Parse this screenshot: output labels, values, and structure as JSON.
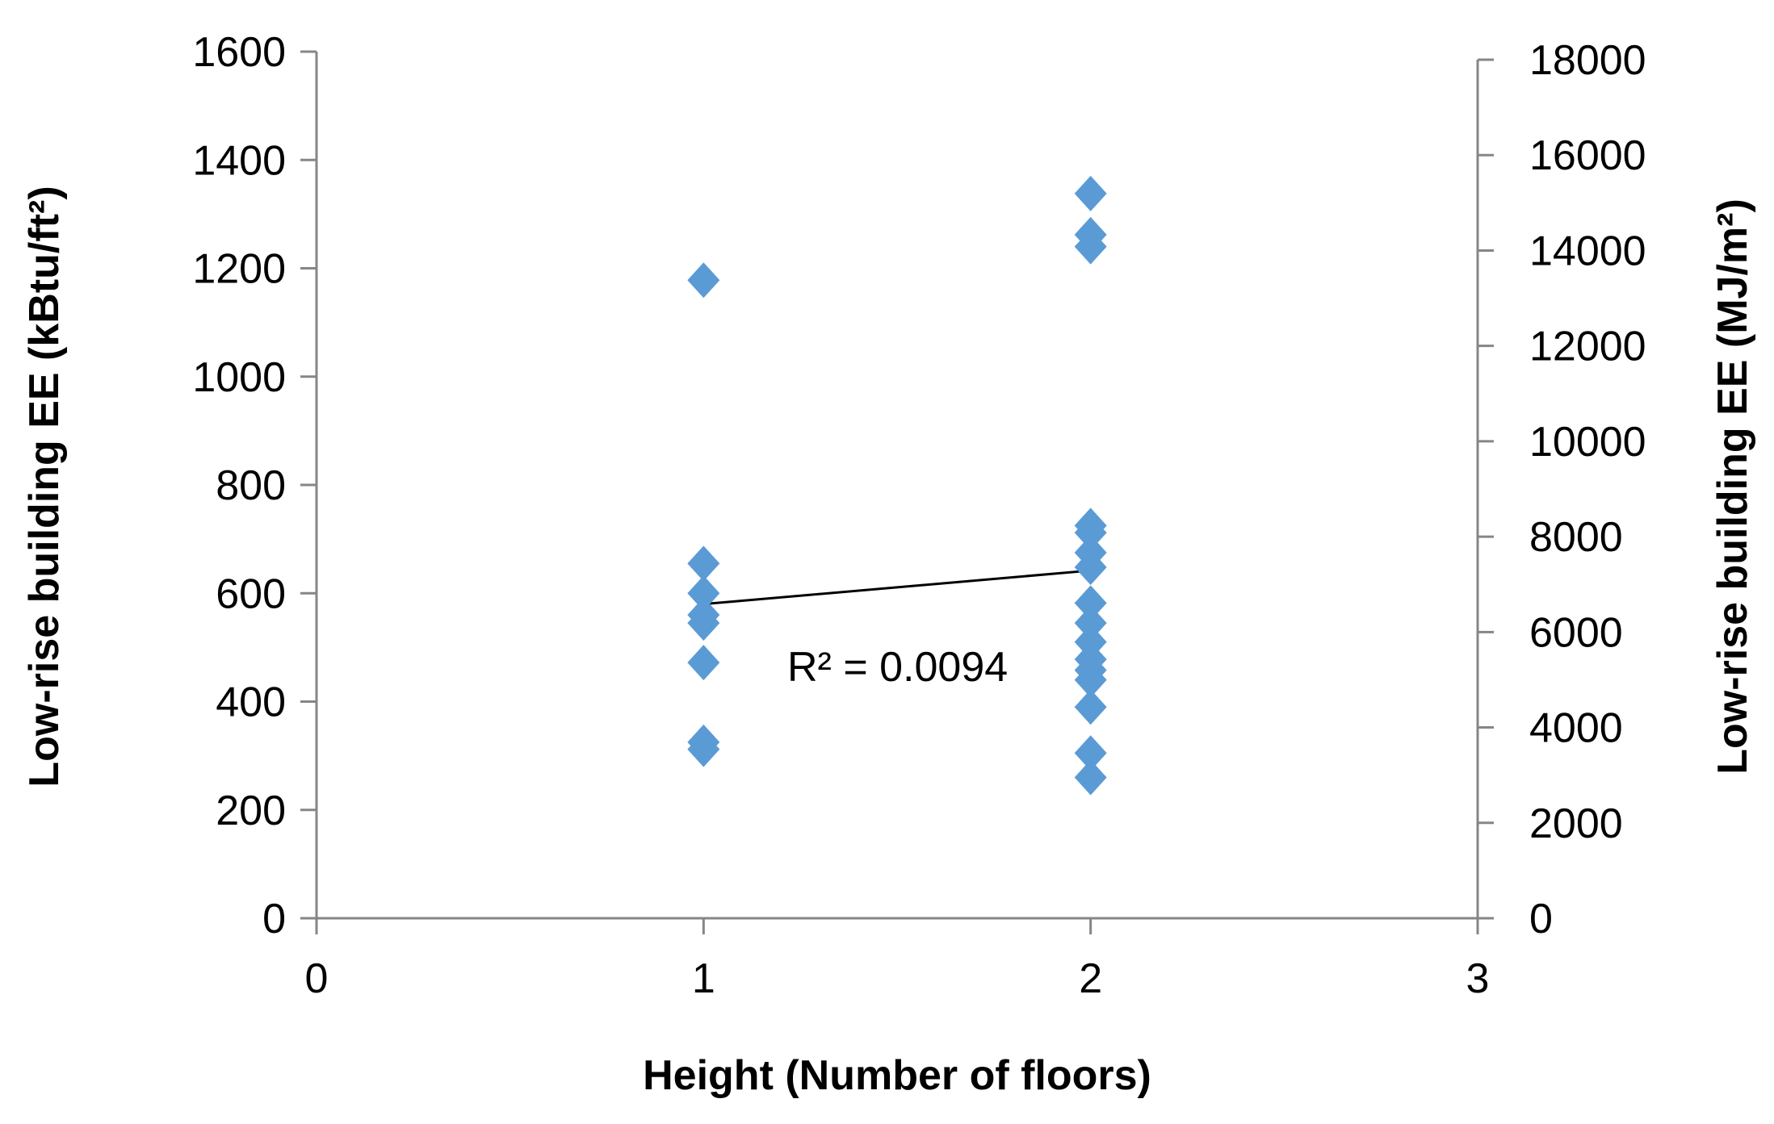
{
  "chart_data": {
    "type": "scatter",
    "xlabel": "Height (Number of floors)",
    "ylabel": "Low-rise building EE (kBtu/ft²)",
    "y2label": "Low-rise building EE (MJ/m²)",
    "xlim": [
      0,
      3
    ],
    "ylim": [
      0,
      1600
    ],
    "y2lim": [
      0,
      18000
    ],
    "xticks": [
      "0",
      "1",
      "2",
      "3"
    ],
    "yticks": [
      "0",
      "200",
      "400",
      "600",
      "800",
      "1000",
      "1200",
      "1400",
      "1600"
    ],
    "y2ticks": [
      "0",
      "2000",
      "4000",
      "6000",
      "8000",
      "10000",
      "12000",
      "14000",
      "16000",
      "18000"
    ],
    "grid": false,
    "legend": "none",
    "marker": "diamond",
    "marker_color": "#5b9bd5",
    "points": [
      {
        "x": 1,
        "y": 1178
      },
      {
        "x": 1,
        "y": 655
      },
      {
        "x": 1,
        "y": 600
      },
      {
        "x": 1,
        "y": 560
      },
      {
        "x": 1,
        "y": 545
      },
      {
        "x": 1,
        "y": 472
      },
      {
        "x": 1,
        "y": 325
      },
      {
        "x": 1,
        "y": 312
      },
      {
        "x": 2,
        "y": 1338
      },
      {
        "x": 2,
        "y": 1262
      },
      {
        "x": 2,
        "y": 1240
      },
      {
        "x": 2,
        "y": 725
      },
      {
        "x": 2,
        "y": 712
      },
      {
        "x": 2,
        "y": 675
      },
      {
        "x": 2,
        "y": 648
      },
      {
        "x": 2,
        "y": 582
      },
      {
        "x": 2,
        "y": 545
      },
      {
        "x": 2,
        "y": 510
      },
      {
        "x": 2,
        "y": 478
      },
      {
        "x": 2,
        "y": 458
      },
      {
        "x": 2,
        "y": 440
      },
      {
        "x": 2,
        "y": 390
      },
      {
        "x": 2,
        "y": 305
      },
      {
        "x": 2,
        "y": 260
      }
    ],
    "trendline": {
      "type": "linear",
      "color": "#000000",
      "x": [
        1,
        2
      ],
      "y": [
        580,
        642
      ],
      "r2_label": "R² = 0.0094"
    }
  }
}
